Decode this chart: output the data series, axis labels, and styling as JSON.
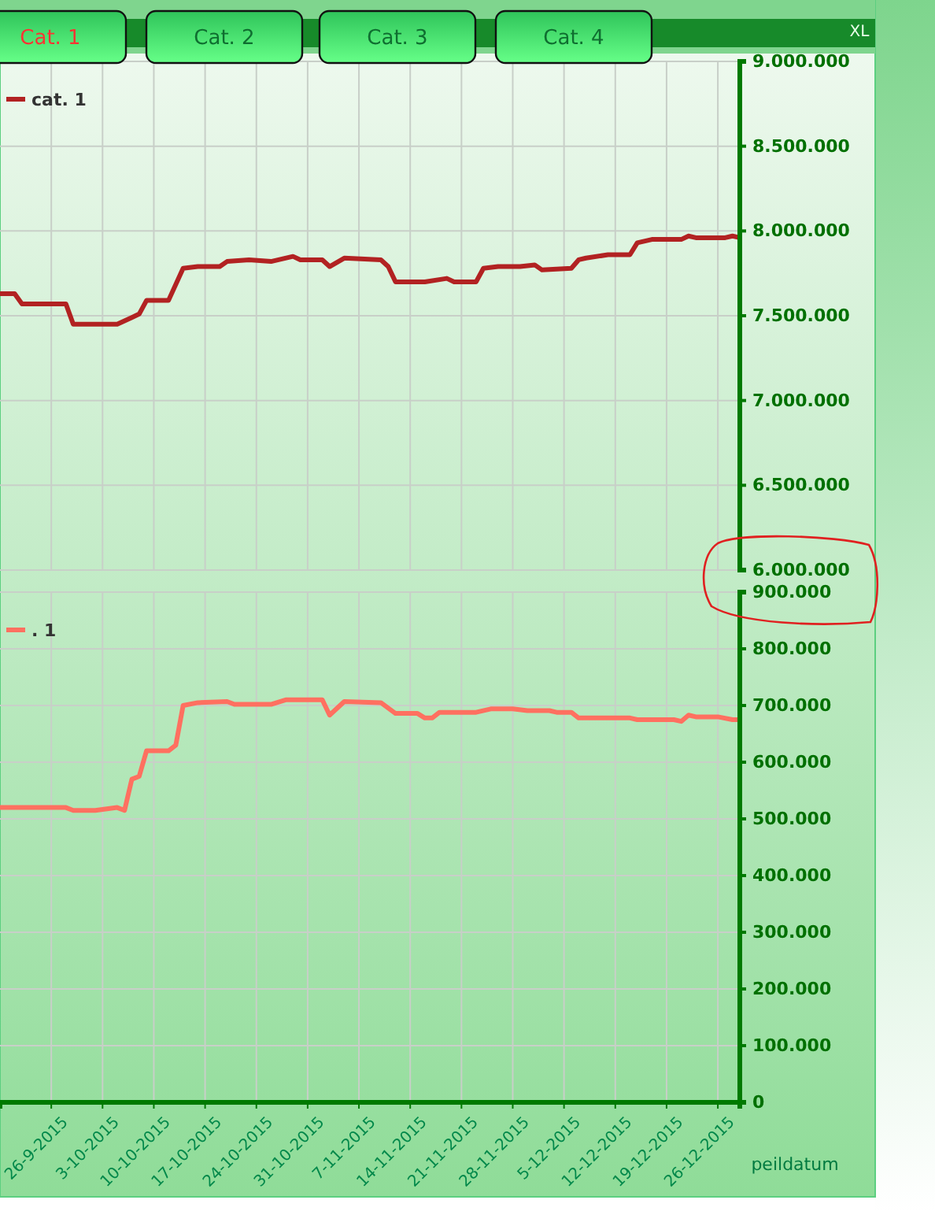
{
  "chart_data": [
    {
      "type": "line",
      "annotations": [
        "Cat. 1",
        "Cat. 2",
        "Cat. 3",
        "Cat. 4",
        "XL"
      ],
      "xlim": [
        "2015-09-19",
        "2015-12-29"
      ],
      "ylim": [
        6000000,
        9000000
      ],
      "yticks": [
        {
          "value": 6000000,
          "label": "6.000.000"
        },
        {
          "value": 6500000,
          "label": "6.500.000"
        },
        {
          "value": 7000000,
          "label": "7.000.000"
        },
        {
          "value": 7500000,
          "label": "7.500.000"
        },
        {
          "value": 8000000,
          "label": "8.000.000"
        },
        {
          "value": 8500000,
          "label": "8.500.000"
        },
        {
          "value": 9000000,
          "label": "9.000.000"
        }
      ],
      "xticks": [
        {
          "value": "2015-09-26",
          "label": null
        },
        {
          "value": "2015-10-03",
          "label": null
        },
        {
          "value": "2015-10-10",
          "label": null
        },
        {
          "value": "2015-10-17",
          "label": null
        },
        {
          "value": "2015-10-24",
          "label": null
        },
        {
          "value": "2015-10-31",
          "label": null
        },
        {
          "value": "2015-11-07",
          "label": null
        },
        {
          "value": "2015-11-14",
          "label": null
        },
        {
          "value": "2015-11-21",
          "label": null
        },
        {
          "value": "2015-11-28",
          "label": null
        },
        {
          "value": "2015-12-05",
          "label": null
        },
        {
          "value": "2015-12-12",
          "label": null
        },
        {
          "value": "2015-12-19",
          "label": null
        },
        {
          "value": "2015-12-26",
          "label": null
        }
      ],
      "tick_labels": "y",
      "grid": true,
      "legend": "top left",
      "marker": "none",
      "line_style": "solid",
      "series": [
        {
          "name": "cat. 1",
          "color": "#b22222",
          "x": [
            "2015-09-19",
            "2015-09-21",
            "2015-09-22",
            "2015-09-28",
            "2015-09-29",
            "2015-10-03",
            "2015-10-05",
            "2015-10-07",
            "2015-10-08",
            "2015-10-09",
            "2015-10-12",
            "2015-10-14",
            "2015-10-16",
            "2015-10-19",
            "2015-10-20",
            "2015-10-23",
            "2015-10-26",
            "2015-10-29",
            "2015-10-30",
            "2015-11-02",
            "2015-11-03",
            "2015-11-05",
            "2015-11-10",
            "2015-11-11",
            "2015-11-12",
            "2015-11-16",
            "2015-11-19",
            "2015-11-20",
            "2015-11-23",
            "2015-11-24",
            "2015-11-26",
            "2015-11-29",
            "2015-12-01",
            "2015-12-02",
            "2015-12-06",
            "2015-12-07",
            "2015-12-08",
            "2015-12-11",
            "2015-12-14",
            "2015-12-15",
            "2015-12-17",
            "2015-12-21",
            "2015-12-22",
            "2015-12-23",
            "2015-12-27",
            "2015-12-28",
            "2015-12-29"
          ],
          "values": [
            7630000,
            7630000,
            7570000,
            7570000,
            7450000,
            7450000,
            7450000,
            7490000,
            7510000,
            7590000,
            7590000,
            7780000,
            7790000,
            7790000,
            7820000,
            7830000,
            7820000,
            7850000,
            7830000,
            7830000,
            7790000,
            7840000,
            7830000,
            7790000,
            7700000,
            7700000,
            7720000,
            7700000,
            7700000,
            7780000,
            7790000,
            7790000,
            7800000,
            7770000,
            7780000,
            7830000,
            7840000,
            7860000,
            7860000,
            7930000,
            7950000,
            7950000,
            7970000,
            7960000,
            7960000,
            7970000,
            7960000
          ]
        }
      ]
    },
    {
      "type": "line",
      "xlabel": "peildatum",
      "xlim": [
        "2015-09-19",
        "2015-12-29"
      ],
      "ylim": [
        0,
        900000
      ],
      "yticks": [
        0,
        {
          "value": 100000,
          "label": "100.000"
        },
        {
          "value": 200000,
          "label": "200.000"
        },
        {
          "value": 300000,
          "label": "300.000"
        },
        {
          "value": 400000,
          "label": "400.000"
        },
        {
          "value": 500000,
          "label": "500.000"
        },
        {
          "value": 600000,
          "label": "600.000"
        },
        {
          "value": 700000,
          "label": "700.000"
        },
        {
          "value": 800000,
          "label": "800.000"
        },
        {
          "value": 900000,
          "label": "900.000"
        }
      ],
      "xticks": [
        {
          "value": "2015-09-26",
          "label": "26-9-2015"
        },
        {
          "value": "2015-10-03",
          "label": "3-10-2015"
        },
        {
          "value": "2015-10-10",
          "label": "10-10-2015"
        },
        {
          "value": "2015-10-17",
          "label": "17-10-2015"
        },
        {
          "value": "2015-10-24",
          "label": "24-10-2015"
        },
        {
          "value": "2015-10-31",
          "label": "31-10-2015"
        },
        {
          "value": "2015-11-07",
          "label": "7-11-2015"
        },
        {
          "value": "2015-11-14",
          "label": "14-11-2015"
        },
        {
          "value": "2015-11-21",
          "label": "21-11-2015"
        },
        {
          "value": "2015-11-28",
          "label": "28-11-2015"
        },
        {
          "value": "2015-12-05",
          "label": "5-12-2015"
        },
        {
          "value": "2015-12-12",
          "label": "12-12-2015"
        },
        {
          "value": "2015-12-19",
          "label": "19-12-2015"
        },
        {
          "value": "2015-12-26",
          "label": "26-12-2015"
        }
      ],
      "grid": true,
      "legend": "top left",
      "marker": "none",
      "line_style": "solid",
      "series": [
        {
          "name": ". 1",
          "color": "#ff7060",
          "x": [
            "2015-09-19",
            "2015-09-28",
            "2015-09-29",
            "2015-10-02",
            "2015-10-05",
            "2015-10-06",
            "2015-10-07",
            "2015-10-08",
            "2015-10-09",
            "2015-10-12",
            "2015-10-13",
            "2015-10-14",
            "2015-10-16",
            "2015-10-20",
            "2015-10-21",
            "2015-10-26",
            "2015-10-28",
            "2015-11-02",
            "2015-11-03",
            "2015-11-05",
            "2015-11-10",
            "2015-11-12",
            "2015-11-15",
            "2015-11-16",
            "2015-11-17",
            "2015-11-18",
            "2015-11-23",
            "2015-11-25",
            "2015-11-28",
            "2015-11-30",
            "2015-12-03",
            "2015-12-04",
            "2015-12-06",
            "2015-12-07",
            "2015-12-14",
            "2015-12-15",
            "2015-12-20",
            "2015-12-21",
            "2015-12-22",
            "2015-12-23",
            "2015-12-26",
            "2015-12-28",
            "2015-12-29"
          ],
          "values": [
            520000,
            520000,
            515000,
            515000,
            520000,
            515000,
            570000,
            575000,
            620000,
            620000,
            630000,
            700000,
            705000,
            707000,
            702000,
            702000,
            710000,
            710000,
            683000,
            707000,
            705000,
            686000,
            686000,
            678000,
            678000,
            688000,
            688000,
            694000,
            694000,
            691000,
            691000,
            688000,
            688000,
            678000,
            678000,
            675000,
            675000,
            672000,
            683000,
            680000,
            680000,
            675000,
            675000
          ]
        }
      ]
    }
  ]
}
